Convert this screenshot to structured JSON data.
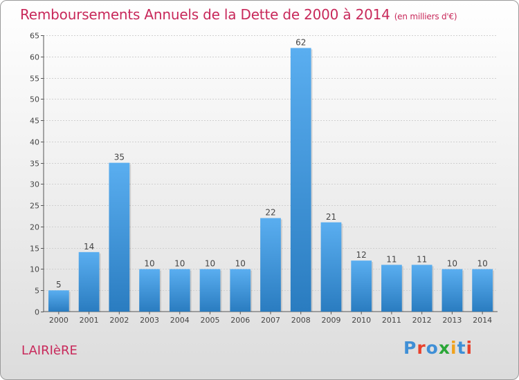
{
  "title": "Remboursements Annuels de la Dette de 2000 à 2014",
  "subtitle": "(en milliers d'€)",
  "commune": "LAIRIèRE",
  "logo": {
    "text": "Proxiti",
    "letters": [
      "P",
      "r",
      "o",
      "x",
      "i",
      "t",
      "i"
    ],
    "colors": [
      "#3f8fd6",
      "#e8412c",
      "#3f8fd6",
      "#2aa637",
      "#f0a21c",
      "#3f8fd6",
      "#e8412c"
    ]
  },
  "colors": {
    "title": "#c8285a",
    "bar_top": "#5aaef0",
    "bar_bottom": "#2a7cc0"
  },
  "chart_data": {
    "type": "bar",
    "title": "Remboursements Annuels de la Dette de 2000 à 2014",
    "subtitle": "(en milliers d'€)",
    "xlabel": "",
    "ylabel": "",
    "ylim": [
      0,
      65
    ],
    "yticks": [
      0,
      5,
      10,
      15,
      20,
      25,
      30,
      35,
      40,
      45,
      50,
      55,
      60,
      65
    ],
    "grid": true,
    "categories": [
      "2000",
      "2001",
      "2002",
      "2003",
      "2004",
      "2005",
      "2006",
      "2007",
      "2008",
      "2009",
      "2010",
      "2011",
      "2012",
      "2013",
      "2014"
    ],
    "values": [
      5,
      14,
      35,
      10,
      10,
      10,
      10,
      22,
      62,
      21,
      12,
      11,
      11,
      10,
      10
    ]
  }
}
